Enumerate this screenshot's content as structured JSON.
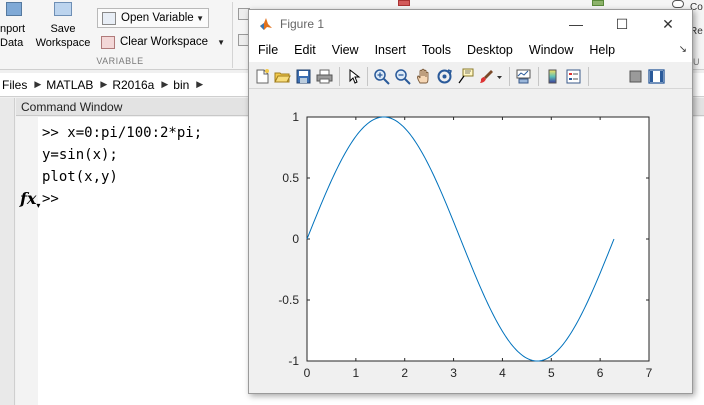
{
  "desktop": {
    "ribbon": {
      "import": {
        "label_line1": "nport",
        "label_line2": "Data"
      },
      "save_workspace": {
        "label_line1": "Save",
        "label_line2": "Workspace"
      },
      "open_variable": {
        "label": "Open Variable"
      },
      "clear_workspace": {
        "label": "Clear Workspace"
      },
      "group_label": "VARIABLE",
      "right_a": "Co",
      "right_b": "Re",
      "right_c": "OU"
    },
    "address": {
      "crumbs": [
        "Files",
        "MATLAB",
        "R2016a",
        "bin"
      ]
    },
    "command_window": {
      "title": "Command Window",
      "lines": [
        ">> x=0:pi/100:2*pi;",
        "y=sin(x);",
        "plot(x,y)"
      ],
      "prompt": ">>",
      "fx_label": "fx"
    }
  },
  "figure": {
    "title": "Figure 1",
    "controls": {
      "minimize": "—",
      "maximize": "☐",
      "close": "✕"
    },
    "menu": [
      "File",
      "Edit",
      "View",
      "Insert",
      "Tools",
      "Desktop",
      "Window",
      "Help"
    ],
    "menu_corner": "↘",
    "toolbar_icons": [
      "new-figure-icon",
      "open-file-icon",
      "save-icon",
      "print-icon",
      "edit-plot-arrow-icon",
      "zoom-in-icon",
      "zoom-out-icon",
      "pan-icon",
      "rotate-3d-icon",
      "data-cursor-icon",
      "brush-icon",
      "link-plot-icon",
      "insert-colorbar-icon",
      "insert-legend-icon",
      "hide-plot-tools-icon",
      "show-plot-tools-icon"
    ],
    "line_color": "#0072bd"
  },
  "chart_data": {
    "type": "line",
    "title": "",
    "xlabel": "",
    "ylabel": "",
    "xlim": [
      0,
      7
    ],
    "ylim": [
      -1,
      1
    ],
    "xticks": [
      "0",
      "1",
      "2",
      "3",
      "4",
      "5",
      "6",
      "7"
    ],
    "yticks": [
      "-1",
      "-0.5",
      "0",
      "0.5",
      "1"
    ],
    "grid": false,
    "legend": "none",
    "series": [
      {
        "function": "y = sin(x)",
        "x_start": 0,
        "x_end": 6.2832,
        "x_step": 0.031416,
        "x": [
          0,
          0.5,
          1.0,
          1.5708,
          2.0,
          2.5,
          3.1416,
          3.5,
          4.0,
          4.7124,
          5.0,
          5.5,
          6.0,
          6.2832
        ],
        "y": [
          0,
          0.479,
          0.841,
          1.0,
          0.909,
          0.598,
          0,
          -0.351,
          -0.757,
          -1.0,
          -0.959,
          -0.706,
          -0.279,
          0
        ]
      }
    ]
  }
}
